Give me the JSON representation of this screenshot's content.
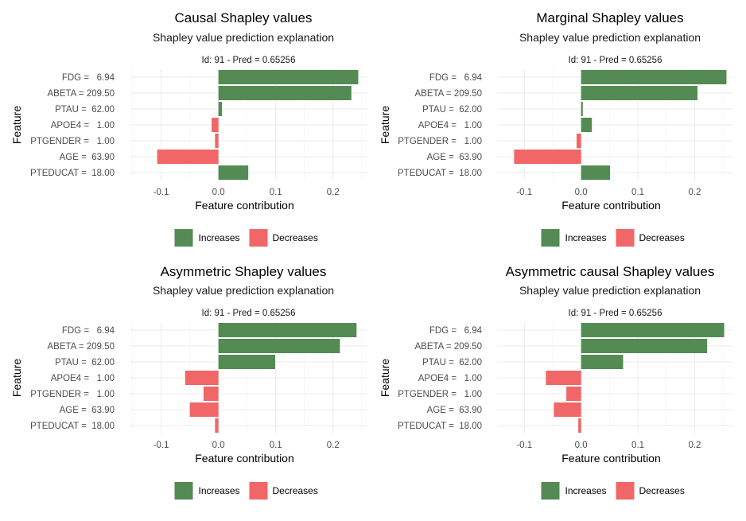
{
  "colors": {
    "increases": "#548b54",
    "decreases": "#f16666",
    "grid": "#ebebeb"
  },
  "chart_data": [
    {
      "type": "bar",
      "orientation": "horizontal",
      "title": "Causal Shapley values",
      "subtitle": "Shapley value prediction explanation",
      "panel_label": "Id: 91 - Pred = 0.65256",
      "xlabel": "Feature contribution",
      "ylabel": "Feature",
      "xlim": [
        -0.155,
        0.26
      ],
      "xticks": [
        {
          "value": -0.1,
          "label": "-0.1"
        },
        {
          "value": 0,
          "label": "0.0"
        },
        {
          "value": 0.1,
          "label": "0.1"
        },
        {
          "value": 0.2,
          "label": "0.2"
        }
      ],
      "categories": [
        "FDG =   6.94",
        "ABETA = 209.50",
        "PTAU =  62.00",
        "APOE4 =   1.00",
        "PTGENDER =   1.00",
        "AGE =  63.90",
        "PTEDUCAT =  18.00"
      ],
      "values": [
        0.244,
        0.232,
        0.006,
        -0.012,
        -0.006,
        -0.107,
        0.052
      ],
      "legend": {
        "position": "bottom",
        "items": [
          "Increases",
          "Decreases"
        ]
      },
      "grid": true
    },
    {
      "type": "bar",
      "orientation": "horizontal",
      "title": "Marginal Shapley values",
      "subtitle": "Shapley value prediction explanation",
      "panel_label": "Id: 91 - Pred = 0.65256",
      "xlabel": "Feature contribution",
      "ylabel": "Feature",
      "xlim": [
        -0.148,
        0.268
      ],
      "xticks": [
        {
          "value": -0.1,
          "label": "-0.1"
        },
        {
          "value": 0,
          "label": "0.0"
        },
        {
          "value": 0.1,
          "label": "0.1"
        },
        {
          "value": 0.2,
          "label": "0.2"
        }
      ],
      "categories": [
        "FDG =   6.94",
        "ABETA = 209.50",
        "PTAU =  62.00",
        "APOE4 =   1.00",
        "PTGENDER =   1.00",
        "AGE =  63.90",
        "PTEDUCAT =  18.00"
      ],
      "values": [
        0.256,
        0.205,
        0.003,
        0.019,
        -0.008,
        -0.118,
        0.051
      ],
      "legend": {
        "position": "bottom",
        "items": [
          "Increases",
          "Decreases"
        ]
      },
      "grid": true
    },
    {
      "type": "bar",
      "orientation": "horizontal",
      "title": "Asymmetric Shapley values",
      "subtitle": "Shapley value prediction explanation",
      "panel_label": "Id: 91 - Pred = 0.65256",
      "xlabel": "Feature contribution",
      "ylabel": "Feature",
      "xlim": [
        -0.155,
        0.26
      ],
      "xticks": [
        {
          "value": -0.1,
          "label": "-0.1"
        },
        {
          "value": 0,
          "label": "0.0"
        },
        {
          "value": 0.1,
          "label": "0.1"
        },
        {
          "value": 0.2,
          "label": "0.2"
        }
      ],
      "categories": [
        "FDG =   6.94",
        "ABETA = 209.50",
        "PTAU =  62.00",
        "APOE4 =   1.00",
        "PTGENDER =   1.00",
        "AGE =  63.90",
        "PTEDUCAT =  18.00"
      ],
      "values": [
        0.241,
        0.212,
        0.099,
        -0.058,
        -0.026,
        -0.05,
        -0.006
      ],
      "legend": {
        "position": "bottom",
        "items": [
          "Increases",
          "Decreases"
        ]
      },
      "grid": true
    },
    {
      "type": "bar",
      "orientation": "horizontal",
      "title": "Asymmetric causal Shapley values",
      "subtitle": "Shapley value prediction explanation",
      "panel_label": "Id: 91 - Pred = 0.65256",
      "xlabel": "Feature contribution",
      "ylabel": "Feature",
      "xlim": [
        -0.148,
        0.268
      ],
      "xticks": [
        {
          "value": -0.1,
          "label": "-0.1"
        },
        {
          "value": 0,
          "label": "0.0"
        },
        {
          "value": 0.1,
          "label": "0.1"
        },
        {
          "value": 0.2,
          "label": "0.2"
        }
      ],
      "categories": [
        "FDG =   6.94",
        "ABETA = 209.50",
        "PTAU =  62.00",
        "APOE4 =   1.00",
        "PTGENDER =   1.00",
        "AGE =  63.90",
        "PTEDUCAT =  18.00"
      ],
      "values": [
        0.252,
        0.222,
        0.074,
        -0.062,
        -0.026,
        -0.048,
        -0.005
      ],
      "legend": {
        "position": "bottom",
        "items": [
          "Increases",
          "Decreases"
        ]
      },
      "grid": true
    }
  ]
}
